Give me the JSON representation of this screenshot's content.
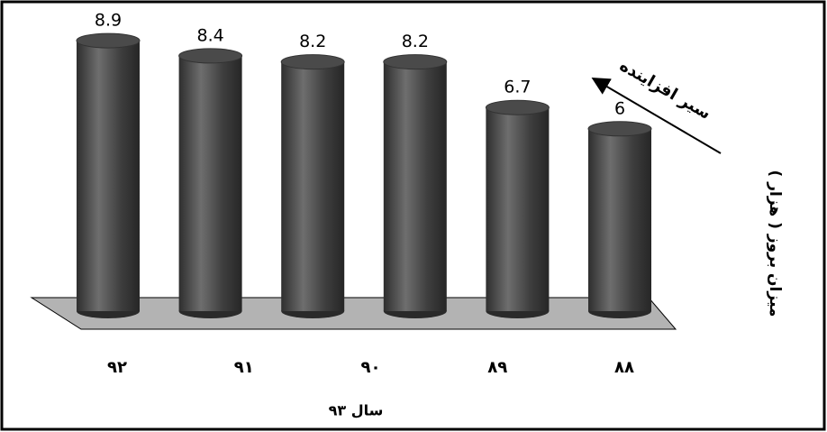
{
  "chart_data": {
    "type": "bar",
    "title": null,
    "x_label": "سال ۹۳",
    "y_label": "میزان بروز ( هزار )",
    "annotation": "سیر افزاینده",
    "categories": [
      null,
      "۹۲",
      "۹۱",
      "۹۰",
      "۸۹",
      "۸۸"
    ],
    "values": [
      8.9,
      8.4,
      8.2,
      8.2,
      6.7,
      6
    ],
    "color": "#4a4a4a",
    "floor_color": "#b3b3b3",
    "ylim": [
      0,
      10
    ]
  }
}
